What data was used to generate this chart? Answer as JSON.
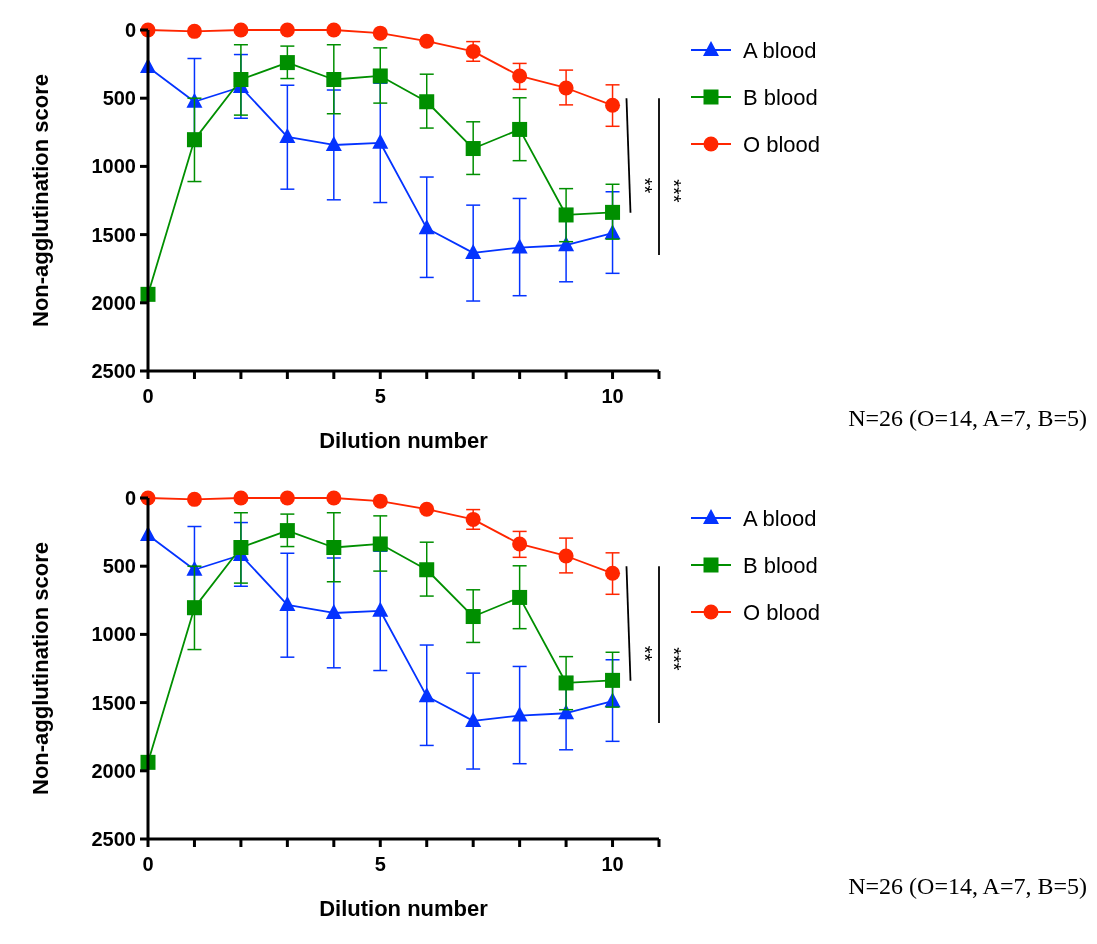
{
  "chart_data": [
    {
      "type": "line",
      "xlabel": "Dilution number",
      "ylabel": "Non-agglutination score",
      "x": [
        0,
        1,
        2,
        3,
        4,
        5,
        6,
        7,
        8,
        9,
        10
      ],
      "xlim": [
        0,
        11
      ],
      "xticks": [
        0,
        {
          "value": 1,
          "label": null
        },
        {
          "value": 2,
          "label": null
        },
        {
          "value": 3,
          "label": null
        },
        {
          "value": 4,
          "label": null
        },
        5,
        {
          "value": 6,
          "label": null
        },
        {
          "value": 7,
          "label": null
        },
        {
          "value": 8,
          "label": null
        },
        {
          "value": 9,
          "label": null
        },
        10,
        {
          "value": 11,
          "label": null
        }
      ],
      "ylim": [
        2500,
        0
      ],
      "yticks": [
        0,
        500,
        1000,
        1500,
        2000,
        2500
      ],
      "grid": false,
      "legend": "right",
      "annotations": [
        "**",
        "***",
        "N=26 (O=14, A=7, B=5)"
      ],
      "series": [
        {
          "name": "A blood",
          "color": "#0433ff",
          "marker": "triangle",
          "values": [
            271,
            526,
            418,
            784,
            843,
            827,
            1454,
            1634,
            1595,
            1578,
            1490
          ],
          "errors": [
            null,
            [
              209,
              853
            ],
            [
              180,
              647
            ],
            [
              405,
              1167
            ],
            [
              440,
              1245
            ],
            [
              390,
              1265
            ],
            [
              1078,
              1814
            ],
            [
              1284,
              1987
            ],
            [
              1235,
              1948
            ],
            [
              1310,
              1846
            ],
            [
              1186,
              1784
            ]
          ]
        },
        {
          "name": "B blood",
          "color": "#008f00",
          "marker": "square",
          "values": [
            1938,
            804,
            363,
            239,
            363,
            337,
            526,
            869,
            729,
            1356,
            1337
          ],
          "errors": [
            null,
            [
              500,
              1111
            ],
            [
              108,
              624
            ],
            [
              118,
              356
            ],
            [
              108,
              614
            ],
            [
              131,
              536
            ],
            [
              324,
              719
            ],
            [
              673,
              1059
            ],
            [
              497,
              958
            ],
            [
              1163,
              1552
            ],
            [
              1131,
              1533
            ]
          ]
        },
        {
          "name": "O blood",
          "color": "#ff2600",
          "marker": "circle",
          "values": [
            0,
            10,
            0,
            0,
            0,
            23,
            82,
            157,
            337,
            425,
            552
          ],
          "errors": [
            null,
            null,
            null,
            null,
            null,
            null,
            null,
            [
              85,
              229
            ],
            [
              245,
              435
            ],
            [
              294,
              549
            ],
            [
              402,
              706
            ]
          ]
        }
      ]
    },
    {
      "type": "line",
      "xlabel": "Dilution number",
      "ylabel": "Non-agglutination score",
      "x": [
        0,
        1,
        2,
        3,
        4,
        5,
        6,
        7,
        8,
        9,
        10
      ],
      "xlim": [
        0,
        11
      ],
      "xticks": [
        0,
        {
          "value": 1,
          "label": null
        },
        {
          "value": 2,
          "label": null
        },
        {
          "value": 3,
          "label": null
        },
        {
          "value": 4,
          "label": null
        },
        5,
        {
          "value": 6,
          "label": null
        },
        {
          "value": 7,
          "label": null
        },
        {
          "value": 8,
          "label": null
        },
        {
          "value": 9,
          "label": null
        },
        10,
        {
          "value": 11,
          "label": null
        }
      ],
      "ylim": [
        2500,
        0
      ],
      "yticks": [
        0,
        500,
        1000,
        1500,
        2000,
        2500
      ],
      "grid": false,
      "legend": "right",
      "annotations": [
        "**",
        "***",
        "N=26 (O=14, A=7, B=5)"
      ],
      "series": [
        {
          "name": "A blood",
          "color": "#0433ff",
          "marker": "triangle",
          "values": [
            271,
            526,
            418,
            784,
            843,
            827,
            1454,
            1634,
            1595,
            1578,
            1490
          ],
          "errors": [
            null,
            [
              209,
              853
            ],
            [
              180,
              647
            ],
            [
              405,
              1167
            ],
            [
              440,
              1245
            ],
            [
              390,
              1265
            ],
            [
              1078,
              1814
            ],
            [
              1284,
              1987
            ],
            [
              1235,
              1948
            ],
            [
              1310,
              1846
            ],
            [
              1186,
              1784
            ]
          ]
        },
        {
          "name": "B blood",
          "color": "#008f00",
          "marker": "square",
          "values": [
            1938,
            804,
            363,
            239,
            363,
            337,
            526,
            869,
            729,
            1356,
            1337
          ],
          "errors": [
            null,
            [
              500,
              1111
            ],
            [
              108,
              624
            ],
            [
              118,
              356
            ],
            [
              108,
              614
            ],
            [
              131,
              536
            ],
            [
              324,
              719
            ],
            [
              673,
              1059
            ],
            [
              497,
              958
            ],
            [
              1163,
              1552
            ],
            [
              1131,
              1533
            ]
          ]
        },
        {
          "name": "O blood",
          "color": "#ff2600",
          "marker": "circle",
          "values": [
            0,
            10,
            0,
            0,
            0,
            23,
            82,
            157,
            337,
            425,
            552
          ],
          "errors": [
            null,
            null,
            null,
            null,
            null,
            null,
            null,
            [
              85,
              229
            ],
            [
              245,
              435
            ],
            [
              294,
              549
            ],
            [
              402,
              706
            ]
          ]
        }
      ]
    }
  ]
}
